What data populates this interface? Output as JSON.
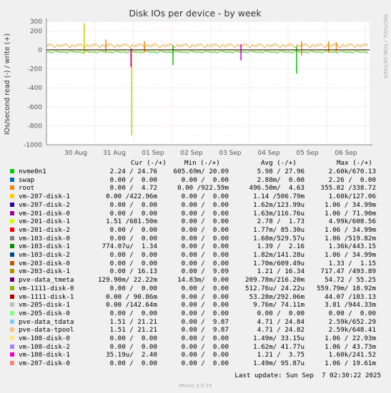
{
  "chart_data": {
    "type": "line",
    "title": "Disk IOs per device - by week",
    "ylabel": "IOs/second read (-) / write (+)",
    "side_label": "RRDTOOL / TOBI OETIKER",
    "ylim": [
      -1000,
      300
    ],
    "yticks": [
      300,
      200,
      0,
      -200,
      -400,
      -600,
      -800,
      -1000
    ],
    "x_ticks": [
      "30 Aug",
      "31 Aug",
      "01 Sep",
      "02 Sep",
      "03 Sep",
      "04 Sep",
      "05 Sep",
      "06 Sep"
    ],
    "grid": true,
    "spikes": [
      {
        "day": 0.72,
        "up": 280,
        "down": -40,
        "color": "#cccc00"
      },
      {
        "day": 1.28,
        "up": 110,
        "down": -20,
        "color": "#ff8000"
      },
      {
        "day": 1.95,
        "up": 20,
        "down": -900,
        "color": "#cccc00"
      },
      {
        "day": 1.93,
        "up": 10,
        "down": -180,
        "color": "#cc00cc"
      },
      {
        "day": 2.28,
        "up": 90,
        "down": -30,
        "color": "#ff8000"
      },
      {
        "day": 3.02,
        "up": 50,
        "down": -160,
        "color": "#00cc00"
      },
      {
        "day": 4.78,
        "up": 60,
        "down": -110,
        "color": "#cc00cc"
      },
      {
        "day": 6.22,
        "up": 40,
        "down": -250,
        "color": "#00cc00"
      },
      {
        "day": 6.35,
        "up": 90,
        "down": -60,
        "color": "#ff8000"
      },
      {
        "day": 7.05,
        "up": 90,
        "down": -30,
        "color": "#ff8000"
      },
      {
        "day": 7.25,
        "up": 80,
        "down": -20,
        "color": "#ff8000"
      }
    ]
  },
  "legend_header": {
    "cur": "Cur (-/+)",
    "min": "Min (-/+)",
    "avg": "Avg (-/+)",
    "max": "Max (-/+)"
  },
  "legend": [
    {
      "name": "nvme0n1",
      "color": "#00cc00",
      "cur": "2.24 / 24.76",
      "min": "605.69m/ 20.09",
      "avg": "5.98 / 27.96",
      "max": "2.60k/670.13"
    },
    {
      "name": "swap",
      "color": "#0066b3",
      "cur": "0.00 /  0.00",
      "min": "0.00 /  0.00",
      "avg": "2.88m/  0.00",
      "max": "2.26 /  0.00"
    },
    {
      "name": "root",
      "color": "#ff8000",
      "cur": "0.00 /  4.72",
      "min": "0.00 /922.59m",
      "avg": "496.50m/  4.63",
      "max": "355.82 /338.72"
    },
    {
      "name": "vm-207-disk-1",
      "color": "#ffcc00",
      "cur": "0.00 /422.96m",
      "min": "0.00 /  0.00",
      "avg": "1.14 /506.79m",
      "max": "1.60k/127.06"
    },
    {
      "name": "vm-207-disk-2",
      "color": "#330099",
      "cur": "0.00 /  0.00",
      "min": "0.00 /  0.00",
      "avg": "1.62m/123.99u",
      "max": "1.06 / 34.99m"
    },
    {
      "name": "vm-201-disk-0",
      "color": "#990099",
      "cur": "0.00 /  0.00",
      "min": "0.00 /  0.00",
      "avg": "1.63m/116.76u",
      "max": "1.06 / 71.90m"
    },
    {
      "name": "vm-201-disk-1",
      "color": "#ccff00",
      "cur": "1.51 /681.50m",
      "min": "0.00 /  0.00",
      "avg": "2.78 /  1.73",
      "max": "4.99k/608.56"
    },
    {
      "name": "vm-201-disk-2",
      "color": "#ff0000",
      "cur": "0.00 /  0.00",
      "min": "0.00 /  0.00",
      "avg": "1.77m/ 85.30u",
      "max": "1.06 / 34.99m"
    },
    {
      "name": "vm-103-disk-0",
      "color": "#808080",
      "cur": "0.00 /  0.00",
      "min": "0.00 /  0.00",
      "avg": "1.68m/529.57u",
      "max": "1.06 /519.82m"
    },
    {
      "name": "vm-103-disk-1",
      "color": "#008f00",
      "cur": "774.07u/  1.34",
      "min": "0.00 /  0.00",
      "avg": "1.39 /  2.16",
      "max": "1.36k/443.15"
    },
    {
      "name": "vm-103-disk-2",
      "color": "#00487d",
      "cur": "0.00 /  0.00",
      "min": "0.00 /  0.00",
      "avg": "1.82m/141.28u",
      "max": "1.06 / 34.99m"
    },
    {
      "name": "vm-203-disk-0",
      "color": "#b35a00",
      "cur": "0.00 /  0.00",
      "min": "0.00 /  0.00",
      "avg": "1.70m/609.49u",
      "max": "1.33 /  1.15"
    },
    {
      "name": "vm-203-disk-1",
      "color": "#b38f00",
      "cur": "0.00 / 16.13",
      "min": "0.00 /  9.09",
      "avg": "1.21 / 16.34",
      "max": "717.47 /493.89"
    },
    {
      "name": "pve-data_tmeta",
      "color": "#6b006b",
      "cur": "129.90m/ 22.22m",
      "min": "14.83m/  0.00",
      "avg": "209.78m/216.20m",
      "max": "54.72 / 55.25"
    },
    {
      "name": "vm-1111-disk-0",
      "color": "#8fb300",
      "cur": "0.00 /  0.00",
      "min": "0.00 /  0.00",
      "avg": "512.76u/ 24.22u",
      "max": "559.79m/ 18.92m"
    },
    {
      "name": "vm-1111-disk-1",
      "color": "#b30000",
      "cur": "0.00 / 90.86m",
      "min": "0.00 /  0.00",
      "avg": "53.28m/292.06m",
      "max": "44.07 /183.13"
    },
    {
      "name": "vm-205-disk-1",
      "color": "#bebebe",
      "cur": "0.00 /142.64m",
      "min": "0.00 /  0.00",
      "avg": "9.76m/ 74.11m",
      "max": "3.81 /944.33m"
    },
    {
      "name": "vm-205-disk-0",
      "color": "#80ff80",
      "cur": "0.00 /  0.00",
      "min": "0.00 /  0.00",
      "avg": "0.00 /  0.00",
      "max": "0.00 /  0.00"
    },
    {
      "name": "pve-data_tdata",
      "color": "#80c9ff",
      "cur": "1.51 / 21.21",
      "min": "0.00 /  9.87",
      "avg": "4.71 / 24.84",
      "max": "2.59k/652.29"
    },
    {
      "name": "pve-data-tpool",
      "color": "#ffc080",
      "cur": "1.51 / 21.21",
      "min": "0.00 /  9.87",
      "avg": "4.71 / 24.82",
      "max": "2.59k/648.41"
    },
    {
      "name": "vm-108-disk-0",
      "color": "#ffe680",
      "cur": "0.00 /  0.00",
      "min": "0.00 /  0.00",
      "avg": "1.49m/ 33.15u",
      "max": "1.06 / 22.93m"
    },
    {
      "name": "vm-108-disk-2",
      "color": "#aa80ff",
      "cur": "0.00 /  0.00",
      "min": "0.00 /  0.00",
      "avg": "1.62m/ 41.77u",
      "max": "1.06 / 43.73m"
    },
    {
      "name": "vm-108-disk-1",
      "color": "#ee00cc",
      "cur": "35.19u/  2.40",
      "min": "0.00 /  0.00",
      "avg": "1.21 /  3.75",
      "max": "1.60k/241.52"
    },
    {
      "name": "vm-207-disk-0",
      "color": "#ff8080",
      "cur": "0.00 /  0.00",
      "min": "0.00 /  0.00",
      "avg": "1.49m/ 95.87u",
      "max": "1.06 / 19.61m"
    }
  ],
  "last_update": "Last update: Sun Sep  7 02:30:22 2025",
  "footer": "Munin 2.0.75"
}
